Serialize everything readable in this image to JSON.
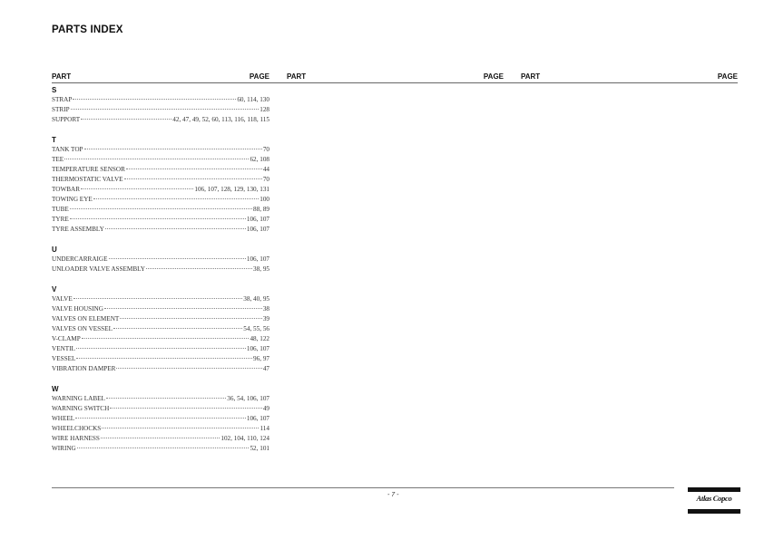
{
  "title": "PARTS INDEX",
  "headers": {
    "part": "PART",
    "page": "PAGE"
  },
  "groups": [
    {
      "letter": "S",
      "entries": [
        [
          "STRAP",
          "60, 114, 130"
        ],
        [
          "STRIP",
          "128"
        ],
        [
          "SUPPORT",
          "42, 47, 49, 52, 60, 113, 116, 118, 115"
        ]
      ]
    },
    {
      "letter": "T",
      "entries": [
        [
          "TANK TOP",
          "70"
        ],
        [
          "TEE",
          "62, 108"
        ],
        [
          "TEMPERATURE SENSOR",
          "44"
        ],
        [
          "THERMOSTATIC VALVE",
          "70"
        ],
        [
          "TOWBAR",
          "106, 107, 128, 129, 130, 131"
        ],
        [
          "TOWING EYE",
          "100"
        ],
        [
          "TUBE",
          "88, 89"
        ],
        [
          "TYRE",
          "106, 107"
        ],
        [
          "TYRE ASSEMBLY",
          "106, 107"
        ]
      ]
    },
    {
      "letter": "U",
      "entries": [
        [
          "UNDERCARRAIGE",
          "106, 107"
        ],
        [
          "UNLOADER VALVE ASSEMBLY",
          "38, 95"
        ]
      ]
    },
    {
      "letter": "V",
      "entries": [
        [
          "VALVE",
          "38, 40, 95"
        ],
        [
          "VALVE HOUSING",
          "38"
        ],
        [
          "VALVES ON ELEMENT",
          "39"
        ],
        [
          "VALVES ON VESSEL",
          "54, 55, 56"
        ],
        [
          "V-CLAMP",
          "48, 122"
        ],
        [
          "VENTIL",
          "106, 107"
        ],
        [
          "VESSEL",
          "96, 97"
        ],
        [
          "VIBRATION DAMPER",
          "47"
        ]
      ]
    },
    {
      "letter": "W",
      "entries": [
        [
          "WARNING LABEL",
          "36, 54, 106, 107"
        ],
        [
          "WARNING SWITCH",
          "49"
        ],
        [
          "WHEEL",
          "106, 107"
        ],
        [
          "WHEELCHOCKS",
          "114"
        ],
        [
          "WIRE HARNESS",
          "102, 104, 110, 124"
        ],
        [
          "WIRING",
          "52, 101"
        ]
      ]
    }
  ],
  "footer": {
    "page_number": "- 7 -",
    "logo_text": "Atlas Copco"
  }
}
